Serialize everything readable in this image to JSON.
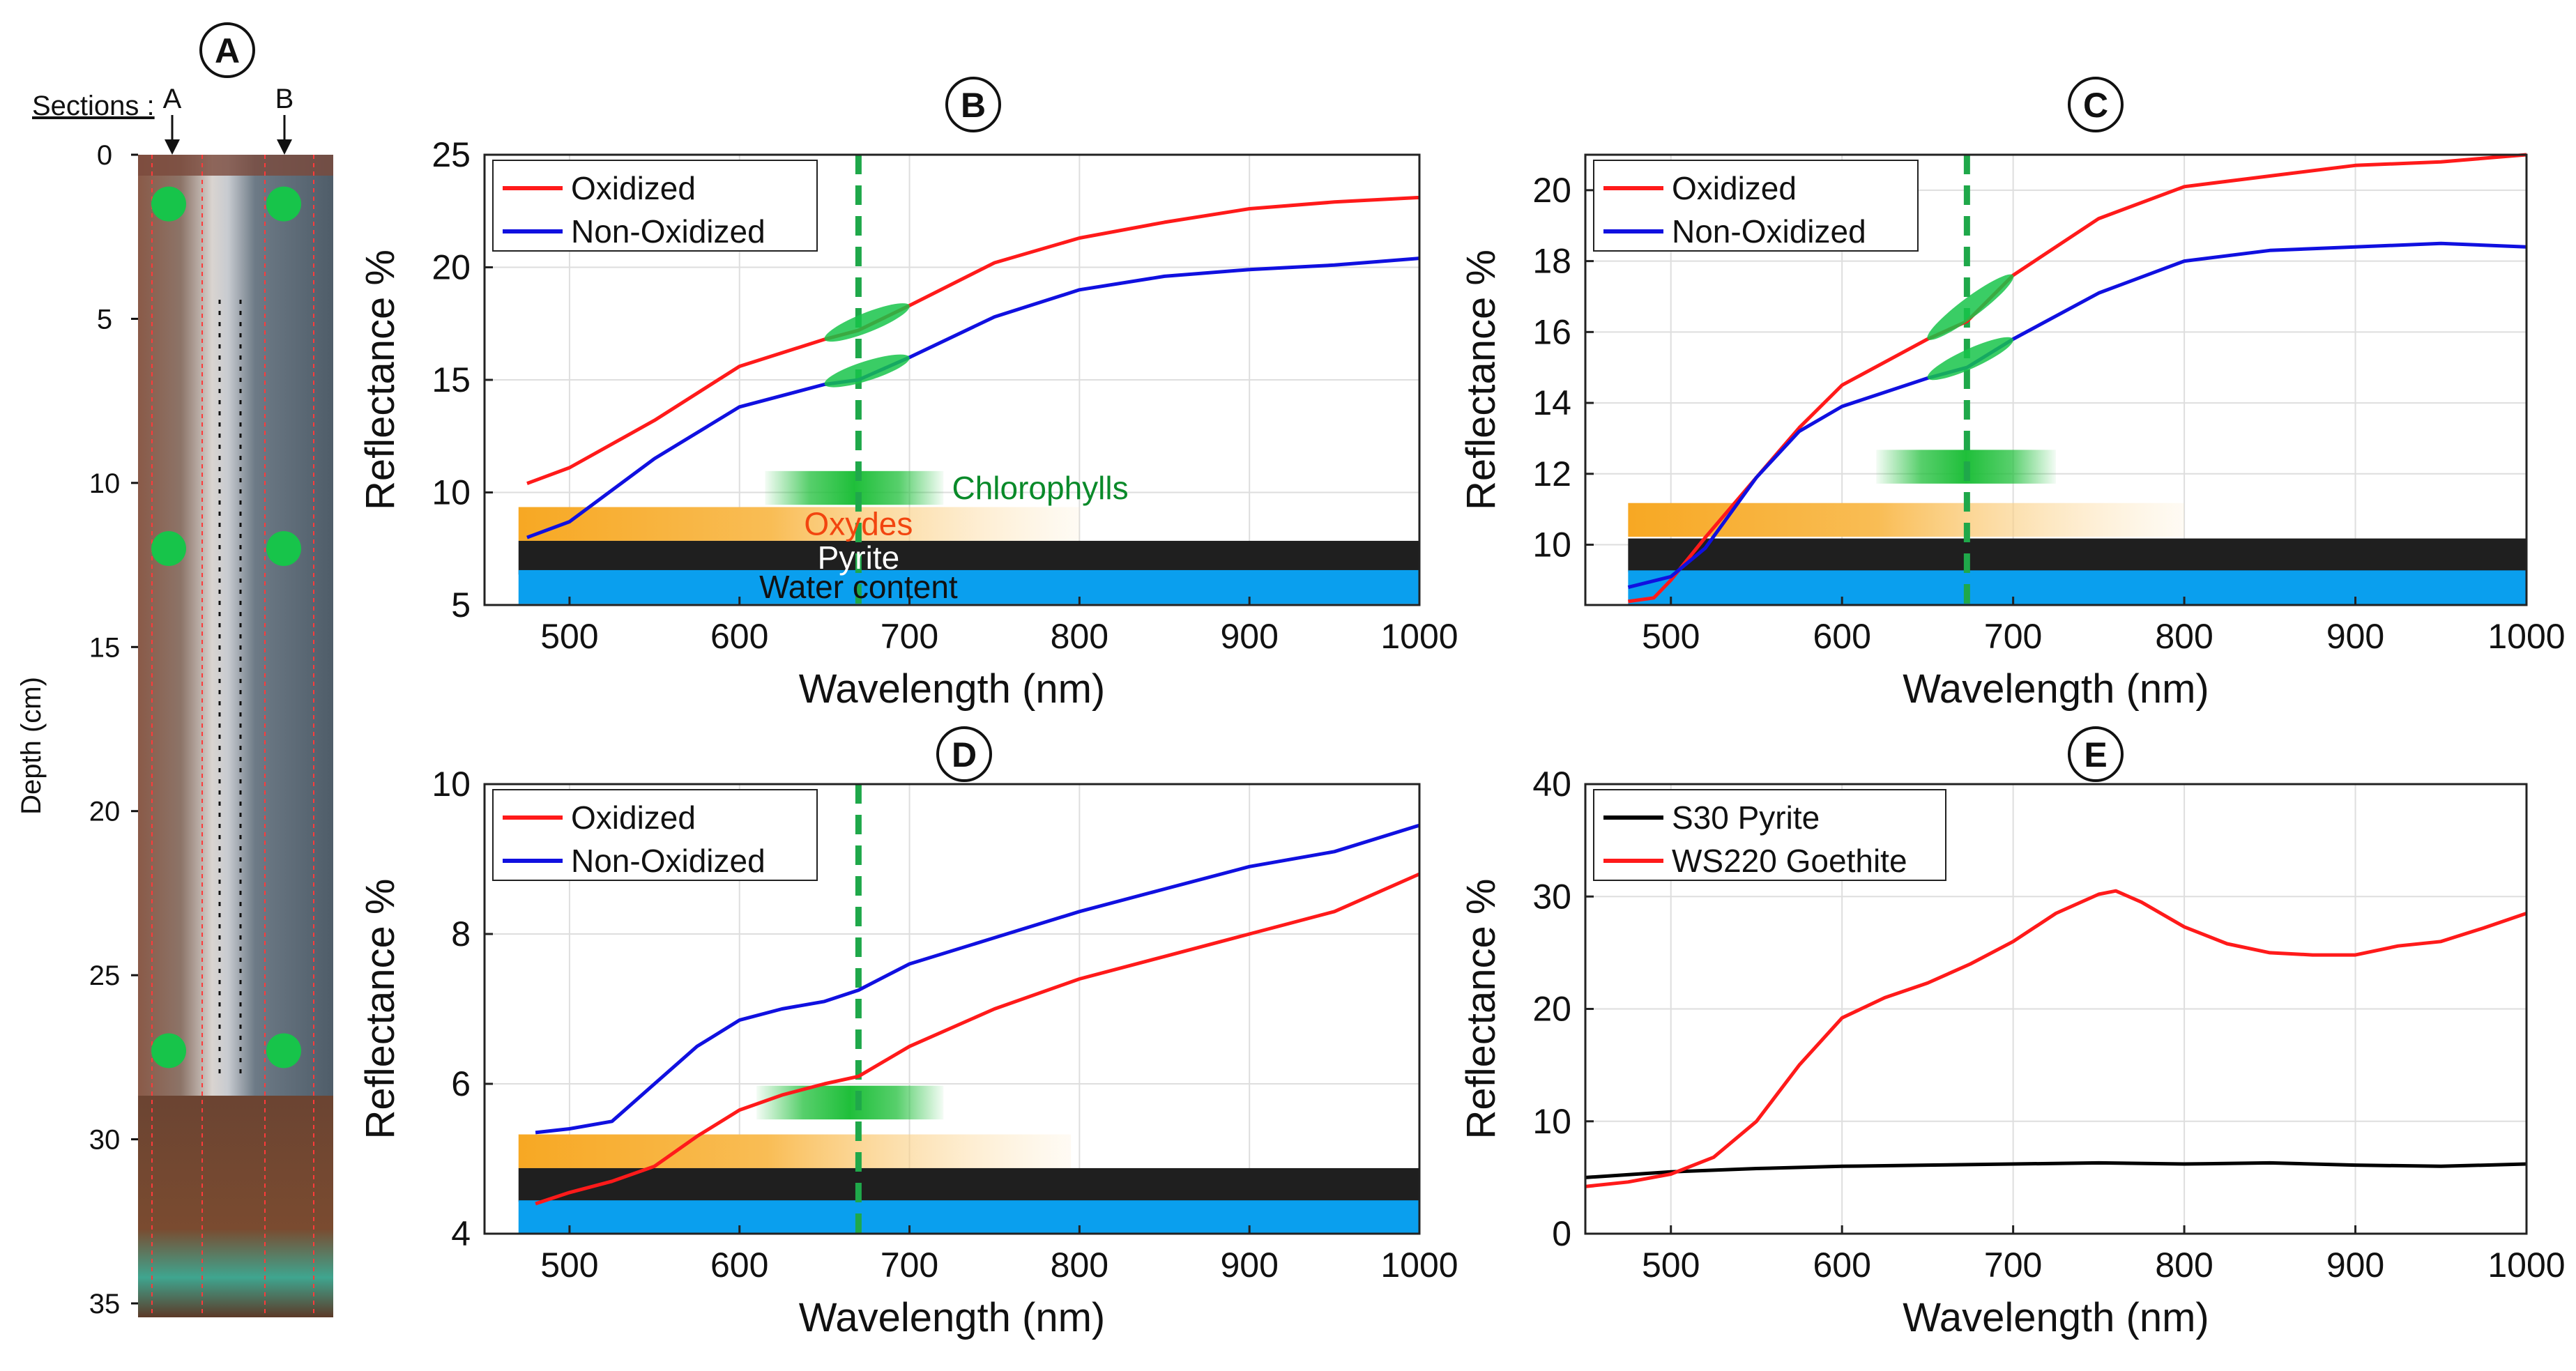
{
  "figure": {
    "panel_a": {
      "label": "A",
      "sections_label": "Sections :",
      "section_names": [
        "A",
        "B"
      ],
      "depth_label": "Depth (cm)",
      "depth_ticks": [
        "0",
        "5",
        "10",
        "15",
        "20",
        "25",
        "30",
        "35"
      ],
      "depth_range": [
        0,
        35
      ],
      "sample_depths_cm": [
        1.5,
        12,
        27.3
      ]
    }
  },
  "colors": {
    "oxidized": "#ff1a1a",
    "non_oxidized": "#1010e0",
    "pyrite": "#000000",
    "goethite": "#ff1a1a",
    "chlorophyll_line": "#1fa84a",
    "green_marker": "#17c44a",
    "oxydes_band": "#f7a823",
    "pyrite_band": "#1f1f1f",
    "water_band": "#0a9fee",
    "chlorophyll_label": "#0a8a2a",
    "oxydes_label": "#f2450f"
  },
  "chart_data": [
    {
      "panel": "B",
      "type": "line",
      "xlabel": "Wavelength (nm)",
      "ylabel": "Reflectance %",
      "xlim": [
        450,
        1000
      ],
      "ylim": [
        5,
        25
      ],
      "xticks": [
        500,
        600,
        700,
        800,
        900,
        1000
      ],
      "yticks": [
        5,
        10,
        15,
        20,
        25
      ],
      "grid": true,
      "legend_position": "top-left",
      "chlorophyll_line_x": 670,
      "series": [
        {
          "name": "Oxidized",
          "color": "#ff1a1a",
          "x": [
            475,
            500,
            550,
            600,
            650,
            670,
            700,
            750,
            800,
            850,
            900,
            950,
            1000
          ],
          "y": [
            10.4,
            11.1,
            13.2,
            15.6,
            16.8,
            17.2,
            18.3,
            20.2,
            21.3,
            22.0,
            22.6,
            22.9,
            23.1
          ]
        },
        {
          "name": "Non-Oxidized",
          "color": "#1010e0",
          "x": [
            475,
            500,
            550,
            600,
            650,
            670,
            700,
            750,
            800,
            850,
            900,
            950,
            1000
          ],
          "y": [
            8.0,
            8.7,
            11.5,
            13.8,
            14.8,
            15.0,
            16.0,
            17.8,
            19.0,
            19.6,
            19.9,
            20.1,
            20.4
          ]
        }
      ],
      "bands": [
        {
          "name": "Chlorophylls",
          "start": 615,
          "end": 720,
          "y_center": 10.2,
          "shape": "fade-edges"
        },
        {
          "name": "Oxydes",
          "start": 470,
          "end": 800,
          "y_center": 8.6,
          "shape": "fade-right"
        },
        {
          "name": "Pyrite",
          "start": 470,
          "end": 1000,
          "y_center": 7.1,
          "shape": "solid"
        },
        {
          "name": "Water content",
          "start": 470,
          "end": 1000,
          "y_center": 5.8,
          "shape": "solid"
        }
      ],
      "show_band_labels": true
    },
    {
      "panel": "C",
      "type": "line",
      "xlabel": "Wavelength (nm)",
      "ylabel": "Reflectance %",
      "xlim": [
        450,
        1000
      ],
      "ylim": [
        8.3,
        21
      ],
      "xticks": [
        500,
        600,
        700,
        800,
        900,
        1000
      ],
      "yticks": [
        10,
        12,
        14,
        16,
        18,
        20
      ],
      "grid": true,
      "legend_position": "top-left",
      "chlorophyll_line_x": 673,
      "series": [
        {
          "name": "Oxidized",
          "color": "#ff1a1a",
          "x": [
            475,
            490,
            500,
            520,
            550,
            575,
            600,
            650,
            673,
            700,
            750,
            800,
            850,
            900,
            950,
            1000
          ],
          "y": [
            8.4,
            8.5,
            9.0,
            10.2,
            11.9,
            13.3,
            14.5,
            15.8,
            16.3,
            17.6,
            19.2,
            20.1,
            20.4,
            20.7,
            20.8,
            21.0
          ]
        },
        {
          "name": "Non-Oxidized",
          "color": "#1010e0",
          "x": [
            475,
            500,
            520,
            550,
            575,
            600,
            650,
            673,
            700,
            750,
            800,
            850,
            900,
            950,
            1000
          ],
          "y": [
            8.8,
            9.1,
            9.9,
            11.9,
            13.2,
            13.9,
            14.7,
            15.0,
            15.8,
            17.1,
            18.0,
            18.3,
            18.4,
            18.5,
            18.4
          ]
        }
      ],
      "bands": [
        {
          "name": "Chlorophylls",
          "start": 620,
          "end": 725,
          "y_center": 12.2,
          "shape": "fade-edges"
        },
        {
          "name": "Oxydes",
          "start": 475,
          "end": 800,
          "y_center": 10.7,
          "shape": "fade-right"
        },
        {
          "name": "Pyrite",
          "start": 475,
          "end": 1000,
          "y_center": 9.7,
          "shape": "solid"
        },
        {
          "name": "Water content",
          "start": 475,
          "end": 1000,
          "y_center": 8.8,
          "shape": "solid"
        }
      ],
      "show_band_labels": false
    },
    {
      "panel": "D",
      "type": "line",
      "xlabel": "Wavelength (nm)",
      "ylabel": "Reflectance %",
      "xlim": [
        450,
        1000
      ],
      "ylim": [
        4,
        10
      ],
      "xticks": [
        500,
        600,
        700,
        800,
        900,
        1000
      ],
      "yticks": [
        4,
        6,
        8,
        10
      ],
      "grid": true,
      "legend_position": "top-left",
      "chlorophyll_line_x": 670,
      "series": [
        {
          "name": "Oxidized",
          "color": "#ff1a1a",
          "x": [
            480,
            500,
            525,
            550,
            575,
            600,
            625,
            650,
            670,
            700,
            750,
            800,
            850,
            900,
            950,
            1000
          ],
          "y": [
            4.4,
            4.55,
            4.7,
            4.9,
            5.3,
            5.65,
            5.85,
            6.0,
            6.1,
            6.5,
            7.0,
            7.4,
            7.7,
            8.0,
            8.3,
            8.8
          ]
        },
        {
          "name": "Non-Oxidized",
          "color": "#1010e0",
          "x": [
            480,
            500,
            525,
            550,
            575,
            600,
            625,
            650,
            670,
            700,
            750,
            800,
            850,
            900,
            950,
            1000
          ],
          "y": [
            5.35,
            5.4,
            5.5,
            6.0,
            6.5,
            6.85,
            7.0,
            7.1,
            7.25,
            7.6,
            7.95,
            8.3,
            8.6,
            8.9,
            9.1,
            9.45
          ]
        }
      ],
      "bands": [
        {
          "name": "Chlorophylls",
          "start": 610,
          "end": 720,
          "y_center": 5.75,
          "shape": "fade-edges"
        },
        {
          "name": "Oxydes",
          "start": 470,
          "end": 795,
          "y_center": 5.1,
          "shape": "fade-right"
        },
        {
          "name": "Pyrite",
          "start": 470,
          "end": 1000,
          "y_center": 4.65,
          "shape": "solid"
        },
        {
          "name": "Water content",
          "start": 470,
          "end": 1000,
          "y_center": 4.22,
          "shape": "solid"
        }
      ],
      "show_band_labels": false
    },
    {
      "panel": "E",
      "type": "line",
      "xlabel": "Wavelength (nm)",
      "ylabel": "Reflectance %",
      "xlim": [
        450,
        1000
      ],
      "ylim": [
        0,
        40
      ],
      "xticks": [
        500,
        600,
        700,
        800,
        900,
        1000
      ],
      "yticks": [
        0,
        10,
        20,
        30,
        40
      ],
      "grid": true,
      "legend_position": "top-left",
      "series": [
        {
          "name": "S30 Pyrite",
          "color": "#000000",
          "x": [
            450,
            500,
            550,
            600,
            650,
            700,
            750,
            800,
            850,
            900,
            950,
            1000
          ],
          "y": [
            5.0,
            5.5,
            5.8,
            6.0,
            6.1,
            6.2,
            6.3,
            6.2,
            6.3,
            6.1,
            6.0,
            6.2
          ]
        },
        {
          "name": "WS220 Goethite",
          "color": "#ff1a1a",
          "x": [
            450,
            475,
            500,
            525,
            550,
            575,
            600,
            625,
            650,
            675,
            700,
            725,
            750,
            760,
            775,
            800,
            825,
            850,
            875,
            900,
            925,
            950,
            975,
            1000
          ],
          "y": [
            4.2,
            4.6,
            5.3,
            6.8,
            10.0,
            15.0,
            19.2,
            21.0,
            22.3,
            24.0,
            26.0,
            28.5,
            30.2,
            30.5,
            29.5,
            27.3,
            25.8,
            25.0,
            24.8,
            24.8,
            25.6,
            26.0,
            27.2,
            28.5
          ]
        }
      ]
    }
  ]
}
